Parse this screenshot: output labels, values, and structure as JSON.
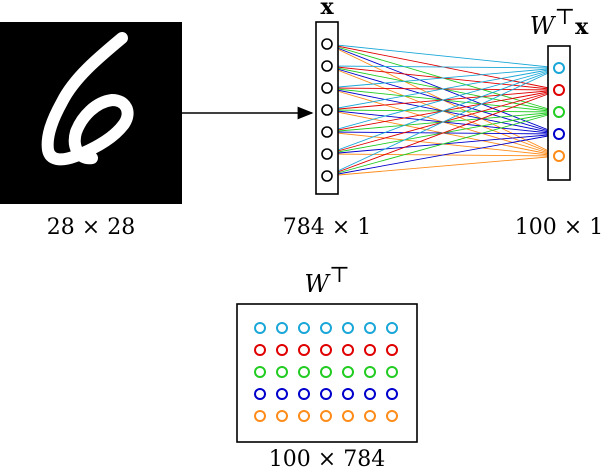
{
  "input_image": {
    "dims_label": "28 × 28",
    "digit_glyph": "6",
    "background_color": "#000000",
    "digit_color": "#ffffff"
  },
  "input_vector": {
    "title": "x",
    "dims_label": "784 × 1",
    "node_count": 7
  },
  "output_vector": {
    "title_main": "W",
    "title_sup": "⊤",
    "title_vec": "x",
    "dims_label": "100 × 1",
    "node_colors": [
      "#1aa7d8",
      "#e00000",
      "#22cc22",
      "#0000cc",
      "#ff8c1a"
    ]
  },
  "weight_matrix": {
    "title_main": "W",
    "title_sup": "⊤",
    "dims_label": "100 × 784",
    "row_colors": [
      "#1aa7d8",
      "#e00000",
      "#22cc22",
      "#0000cc",
      "#ff8c1a"
    ],
    "cols": 7
  }
}
